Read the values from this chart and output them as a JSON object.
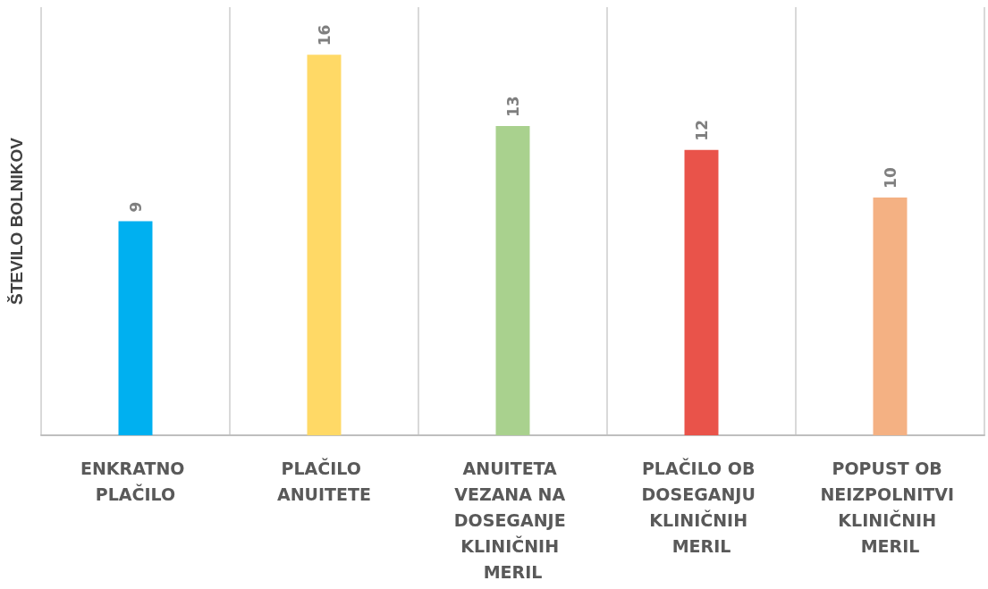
{
  "chart_data": {
    "type": "bar",
    "ylabel": "ŠTEVILO BOLNIKOV",
    "categories": [
      "ENKRATNO PLAČILO",
      "PLAČILO ANUITETE",
      "ANUITETA VEZANA NA DOSEGANJE KLINIČNIH MERIL",
      "PLAČILO OB DOSEGANJU KLINIČNIH MERIL",
      "POPUST OB NEIZPOLNITVI KLINIČNIH MERIL"
    ],
    "values": [
      9,
      16,
      13,
      12,
      10
    ],
    "colors": [
      "#00b0f0",
      "#ffd966",
      "#a9d18e",
      "#e9534a",
      "#f4b183"
    ],
    "data_labels": true,
    "grid": "x",
    "tick_labels": "x"
  }
}
